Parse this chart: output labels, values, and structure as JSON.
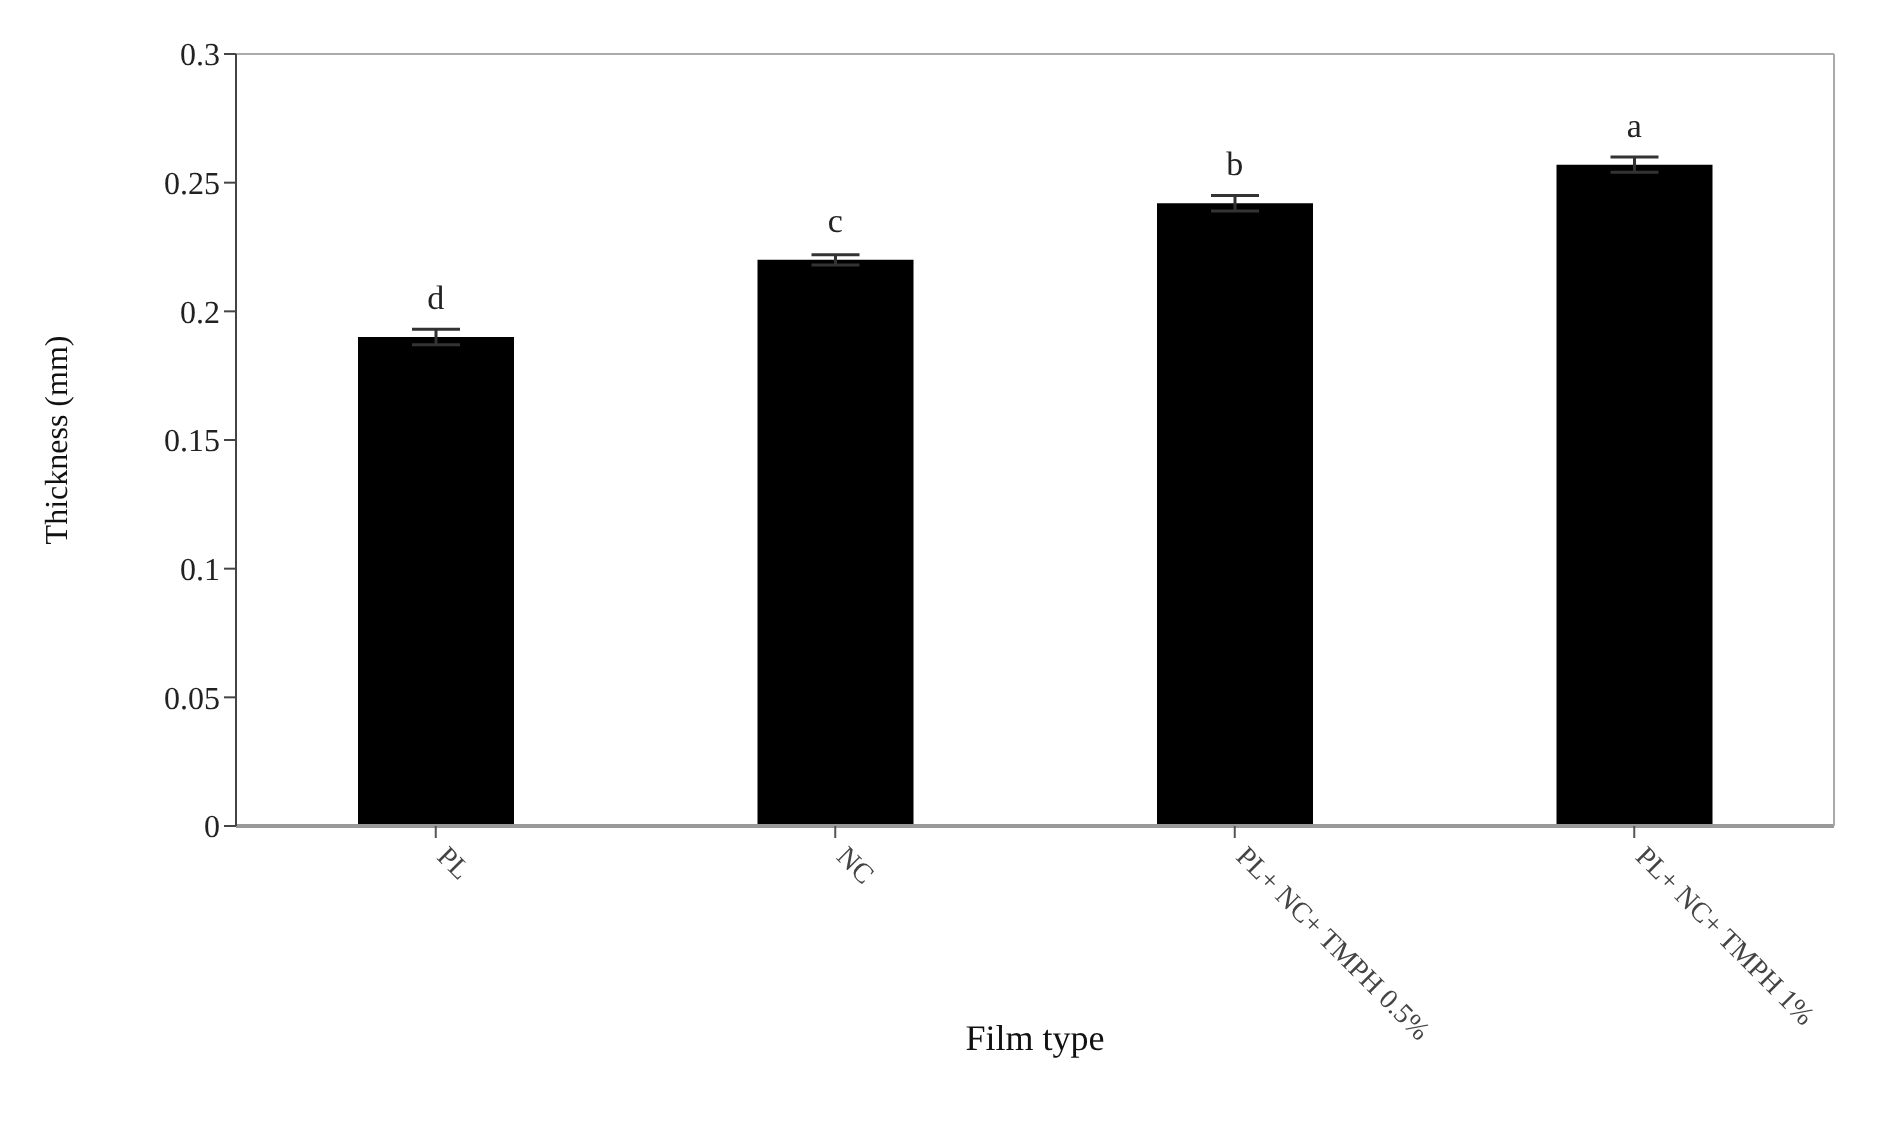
{
  "chart_data": {
    "type": "bar",
    "xlabel": "Film type",
    "ylabel": "Thickness (mm)",
    "categories": [
      "PL",
      "NC",
      "PL+ NC+ TMPH 0.5%",
      "PL+ NC+ TMPH 1%"
    ],
    "values": [
      0.19,
      0.22,
      0.242,
      0.257
    ],
    "errors": [
      0.003,
      0.002,
      0.003,
      0.003
    ],
    "color": "#000000",
    "ylim": [
      0,
      0.3
    ],
    "yticks": [
      0,
      0.05,
      0.1,
      0.15,
      0.2,
      0.25,
      0.3
    ],
    "grid": false,
    "legend": false,
    "annotations": [
      {
        "text": "d",
        "x": "PL",
        "y": 0.19
      },
      {
        "text": "c",
        "x": "NC",
        "y": 0.22
      },
      {
        "text": "b",
        "x": "PL+ NC+ TMPH 0.5%",
        "y": 0.242
      },
      {
        "text": "a",
        "x": "PL+ NC+ TMPH 1%",
        "y": 0.257
      }
    ]
  }
}
